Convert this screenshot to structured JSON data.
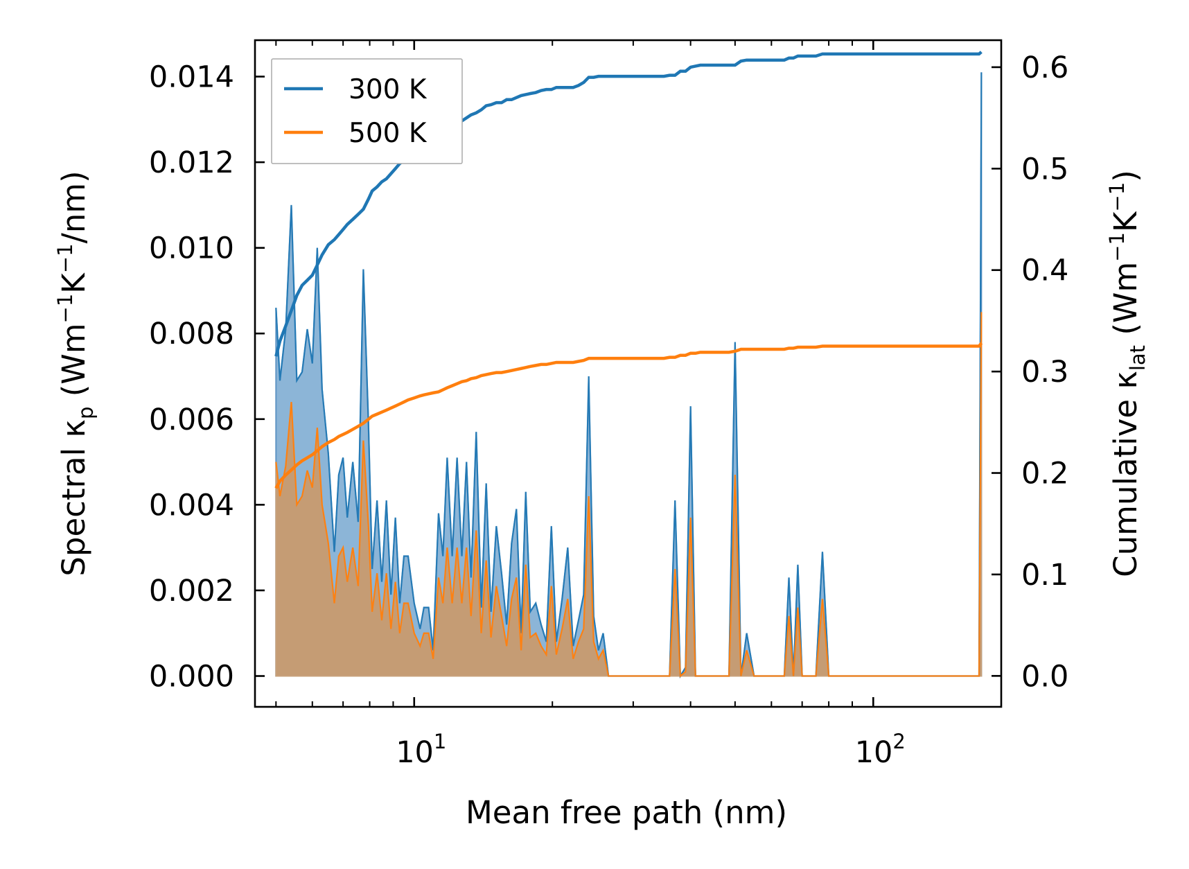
{
  "chart_data": {
    "type": "line",
    "title": "",
    "xlabel": "Mean free path (nm)",
    "ylabel_left": {
      "main": "Spectral κ",
      "sub": "p",
      "unit_pre": " (Wm",
      "exp1": "−1",
      "mid": "K",
      "exp2": "−1",
      "tail": "/nm)"
    },
    "ylabel_right": {
      "main": "Cumulative κ",
      "sub": "lat",
      "unit_pre": " (Wm",
      "exp1": "−1",
      "mid": "K",
      "exp2": "−1",
      "tail": ")"
    },
    "xscale": "log",
    "xlim": [
      4.5,
      190
    ],
    "ylim_left": [
      -0.00072,
      0.01485
    ],
    "ylim_right": [
      -0.0305,
      0.6266
    ],
    "xticks": [
      {
        "base": "10",
        "exp": "1",
        "value": 10
      },
      {
        "base": "10",
        "exp": "2",
        "value": 100
      }
    ],
    "yticks_left": [
      "0.000",
      "0.002",
      "0.004",
      "0.006",
      "0.008",
      "0.010",
      "0.012",
      "0.014"
    ],
    "yticks_left_values": [
      0,
      0.002,
      0.004,
      0.006,
      0.008,
      0.01,
      0.012,
      0.014
    ],
    "yticks_right": [
      "0.0",
      "0.1",
      "0.2",
      "0.3",
      "0.4",
      "0.5",
      "0.6"
    ],
    "yticks_right_values": [
      0,
      0.1,
      0.2,
      0.3,
      0.4,
      0.5,
      0.6
    ],
    "legend": {
      "position": "top-left",
      "entries": [
        "300 K",
        "500 K"
      ]
    },
    "colors": {
      "300 K": "#1f77b4",
      "500 K": "#ff7f0e",
      "fill_300": "#7fadd3",
      "fill_500": "#c59c74"
    },
    "mfp": [
      5.0,
      5.1,
      5.25,
      5.4,
      5.55,
      5.7,
      5.85,
      6.0,
      6.15,
      6.3,
      6.5,
      6.7,
      6.85,
      7.0,
      7.15,
      7.35,
      7.55,
      7.75,
      7.95,
      8.1,
      8.3,
      8.5,
      8.7,
      8.9,
      9.1,
      9.3,
      9.5,
      9.7,
      10.0,
      10.3,
      10.5,
      10.75,
      11.0,
      11.3,
      11.55,
      11.8,
      12.1,
      12.4,
      12.7,
      13.0,
      13.3,
      13.65,
      14.0,
      14.35,
      14.7,
      15.1,
      15.5,
      15.9,
      16.3,
      16.7,
      17.1,
      17.5,
      17.9,
      18.4,
      18.9,
      19.4,
      19.9,
      20.4,
      21.0,
      21.6,
      22.2,
      22.8,
      23.4,
      24.0,
      24.6,
      25.2,
      25.8,
      26.5,
      27.2,
      28.0,
      29.0,
      31.0,
      33.0,
      35.0,
      36.0,
      37.0,
      38.0,
      39.0,
      40.0,
      41.0,
      42.0,
      45.0,
      47.0,
      48.5,
      50.0,
      51.5,
      53.0,
      55.0,
      58.0,
      61.0,
      64.0,
      65.5,
      67.0,
      68.5,
      70.0,
      72.5,
      75.0,
      77.5,
      80.0,
      90.0,
      110.0,
      130.0,
      150.0,
      168.0,
      170.0,
      172.0
    ],
    "series": [
      {
        "name": "300 K",
        "spectral": [
          0.0086,
          0.0069,
          0.0081,
          0.011,
          0.0069,
          0.0071,
          0.0081,
          0.0073,
          0.01,
          0.0067,
          0.0052,
          0.0029,
          0.0047,
          0.0051,
          0.0037,
          0.005,
          0.0036,
          0.0095,
          0.0059,
          0.0025,
          0.0041,
          0.0022,
          0.0041,
          0.0019,
          0.0037,
          0.0017,
          0.0028,
          0.0028,
          0.0017,
          0.0011,
          0.0016,
          0.0016,
          0.0006,
          0.0038,
          0.0028,
          0.0051,
          0.0028,
          0.0051,
          0.0028,
          0.005,
          0.0023,
          0.0057,
          0.0016,
          0.0045,
          0.0015,
          0.0035,
          0.0024,
          0.0012,
          0.0031,
          0.0039,
          0.001,
          0.0043,
          0.0015,
          0.0017,
          0.0012,
          0.0008,
          0.0035,
          0.0008,
          0.0018,
          0.003,
          0.0007,
          0.0013,
          0.0019,
          0.007,
          0.0014,
          0.0006,
          0.001,
          0.0,
          0.0,
          0.0,
          0.0,
          0.0,
          0.0,
          0.0,
          0.0,
          0.0041,
          0.0,
          0.0002,
          0.0063,
          0.0,
          0.0,
          0.0,
          0.0,
          0.0,
          0.0078,
          0.0,
          0.001,
          0.0,
          0.0,
          0.0,
          0.0,
          0.0023,
          0.0,
          0.0026,
          0.0,
          0.0,
          0.0,
          0.0029,
          0.0,
          0.0,
          0.0,
          0.0,
          0.0,
          0.0,
          0.0,
          0.0141
        ],
        "cumulative": [
          0.315,
          0.33,
          0.345,
          0.36,
          0.375,
          0.385,
          0.39,
          0.395,
          0.405,
          0.415,
          0.425,
          0.43,
          0.435,
          0.44,
          0.445,
          0.45,
          0.455,
          0.46,
          0.47,
          0.478,
          0.482,
          0.487,
          0.49,
          0.495,
          0.5,
          0.505,
          0.508,
          0.512,
          0.515,
          0.52,
          0.522,
          0.523,
          0.525,
          0.527,
          0.532,
          0.535,
          0.54,
          0.543,
          0.547,
          0.55,
          0.553,
          0.555,
          0.558,
          0.562,
          0.563,
          0.565,
          0.565,
          0.568,
          0.568,
          0.57,
          0.572,
          0.573,
          0.574,
          0.575,
          0.577,
          0.578,
          0.578,
          0.58,
          0.58,
          0.58,
          0.58,
          0.582,
          0.585,
          0.59,
          0.59,
          0.591,
          0.591,
          0.591,
          0.591,
          0.591,
          0.591,
          0.591,
          0.591,
          0.591,
          0.592,
          0.592,
          0.596,
          0.596,
          0.6,
          0.601,
          0.602,
          0.602,
          0.602,
          0.602,
          0.602,
          0.606,
          0.607,
          0.607,
          0.607,
          0.607,
          0.607,
          0.609,
          0.609,
          0.611,
          0.611,
          0.611,
          0.611,
          0.613,
          0.613,
          0.613,
          0.613,
          0.613,
          0.613,
          0.613,
          0.613,
          0.615
        ]
      },
      {
        "name": "500 K",
        "spectral": [
          0.005,
          0.0042,
          0.0049,
          0.0064,
          0.004,
          0.0042,
          0.0048,
          0.0044,
          0.0058,
          0.004,
          0.0031,
          0.0017,
          0.0028,
          0.003,
          0.0022,
          0.003,
          0.0021,
          0.0055,
          0.0035,
          0.0015,
          0.0024,
          0.0013,
          0.0024,
          0.0011,
          0.0022,
          0.001,
          0.0017,
          0.0017,
          0.001,
          0.0007,
          0.001,
          0.001,
          0.0004,
          0.0023,
          0.0017,
          0.003,
          0.0017,
          0.003,
          0.0017,
          0.003,
          0.0014,
          0.0034,
          0.001,
          0.0027,
          0.0009,
          0.0021,
          0.0014,
          0.0007,
          0.0018,
          0.0023,
          0.0006,
          0.0026,
          0.0009,
          0.001,
          0.0007,
          0.0005,
          0.0021,
          0.0005,
          0.0011,
          0.0018,
          0.0004,
          0.0008,
          0.0011,
          0.0042,
          0.0008,
          0.0004,
          0.0006,
          0.0,
          0.0,
          0.0,
          0.0,
          0.0,
          0.0,
          0.0,
          0.0,
          0.0025,
          0.0,
          0.0001,
          0.0037,
          0.0,
          0.0,
          0.0,
          0.0,
          0.0,
          0.0047,
          0.0,
          0.0006,
          0.0,
          0.0,
          0.0,
          0.0,
          0.0014,
          0.0,
          0.0016,
          0.0,
          0.0,
          0.0,
          0.0018,
          0.0,
          0.0,
          0.0,
          0.0,
          0.0,
          0.0,
          0.0,
          0.0085
        ],
        "cumulative": [
          0.185,
          0.192,
          0.198,
          0.203,
          0.208,
          0.212,
          0.215,
          0.218,
          0.222,
          0.226,
          0.23,
          0.233,
          0.236,
          0.238,
          0.24,
          0.243,
          0.246,
          0.249,
          0.253,
          0.256,
          0.258,
          0.26,
          0.262,
          0.264,
          0.266,
          0.268,
          0.27,
          0.272,
          0.274,
          0.276,
          0.277,
          0.278,
          0.279,
          0.28,
          0.282,
          0.284,
          0.286,
          0.288,
          0.29,
          0.291,
          0.293,
          0.294,
          0.296,
          0.297,
          0.298,
          0.299,
          0.299,
          0.3,
          0.301,
          0.302,
          0.303,
          0.304,
          0.305,
          0.306,
          0.307,
          0.307,
          0.308,
          0.309,
          0.309,
          0.309,
          0.309,
          0.31,
          0.311,
          0.313,
          0.313,
          0.313,
          0.313,
          0.313,
          0.313,
          0.313,
          0.313,
          0.313,
          0.313,
          0.313,
          0.314,
          0.314,
          0.316,
          0.316,
          0.318,
          0.318,
          0.319,
          0.319,
          0.319,
          0.319,
          0.32,
          0.322,
          0.322,
          0.322,
          0.322,
          0.322,
          0.322,
          0.323,
          0.323,
          0.324,
          0.324,
          0.324,
          0.324,
          0.325,
          0.325,
          0.325,
          0.325,
          0.325,
          0.325,
          0.325,
          0.325,
          0.328
        ]
      }
    ]
  }
}
